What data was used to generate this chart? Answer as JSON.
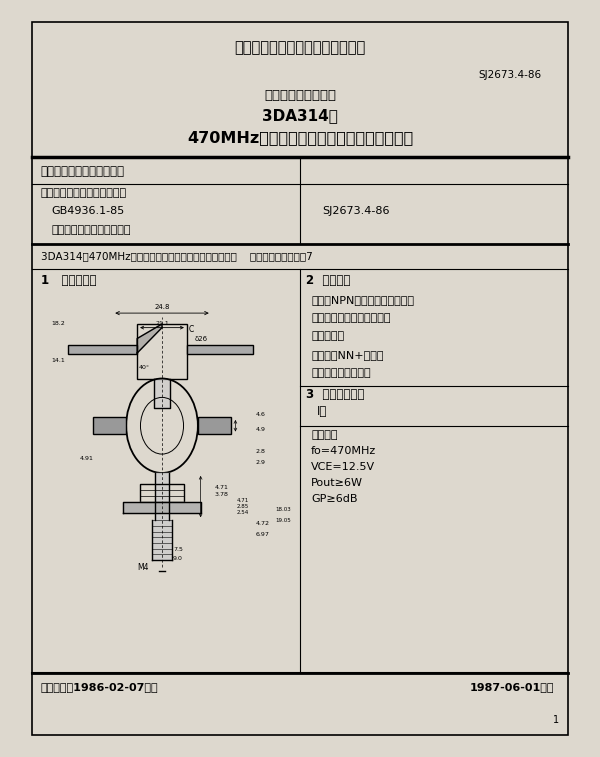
{
  "bg_color": "#e8e4dc",
  "page_bg": "#ffffff",
  "header_title": "中华人民共和国电子工业部部标准",
  "std_number": "SJ2673.4-86",
  "doc_title1": "电子元器件详细规范",
  "doc_title2": "3DA314型",
  "doc_title3": "470MHz管壳额定的低电压双极型功率晶体管",
  "table_col1_row1": "中国电子技术标准化研究所",
  "table_col1_row2_line1": "电子元器件质量评定是根据：",
  "table_col1_row2_line2": "GB4936.1-85",
  "table_col1_row2_line3": "《半导体分立器件总规范》",
  "table_col2_row2": "SJ2673.4-86",
  "desc_line": "3DA314型470MHz管壳额定的低电压双极型功率晶体管。    定货资料：见本规范7",
  "sec1_title": "1   机械说明：",
  "sec2_title": "2  简略说明",
  "sec2_line1": "该管系NPN外延平面晶体管，在",
  "sec2_line2": "低压电台中作末前级和末级",
  "sec2_line3": "功率放大。",
  "sec2_line4": "材料：硅NN+外延片",
  "sec2_line5": "封装：金属陶瓷封装",
  "sec3_title": "3  质量评定类别",
  "sec3_class": "Ⅰ类",
  "sec3_ref": "参考数据",
  "sec3_data1": "fo=470MHz",
  "sec3_data2": "VCE=12.5V",
  "sec3_data3": "Pout≥6W",
  "sec3_data4": "GP≥6dB",
  "footer_left": "电子工业部1986-02-07发布",
  "footer_right": "1987-06-01实施",
  "footer_page": "1"
}
